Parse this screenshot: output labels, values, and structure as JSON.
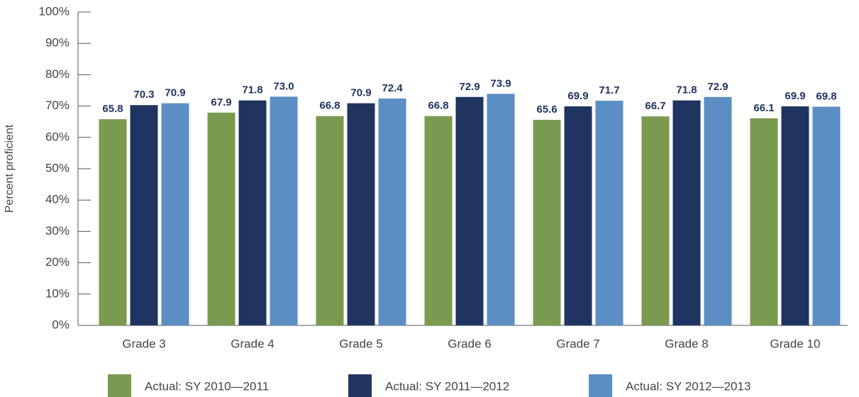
{
  "chart_data": {
    "type": "bar",
    "y_label": "Percent proficient",
    "categories": [
      "Grade 3",
      "Grade 4",
      "Grade 5",
      "Grade 6",
      "Grade 7",
      "Grade 8",
      "Grade 10"
    ],
    "series": [
      {
        "name": "Actual: SY 2010—2011",
        "color": "#7a9a4f",
        "values": [
          65.8,
          67.9,
          66.8,
          66.8,
          65.6,
          66.7,
          66.1
        ],
        "value_labels": [
          "65.8",
          "67.9",
          "66.8",
          "66.8",
          "65.6",
          "66.7",
          "66.1"
        ]
      },
      {
        "name": "Actual: SY 2011—2012",
        "color": "#1f3461",
        "values": [
          70.3,
          71.8,
          70.9,
          72.9,
          69.9,
          71.8,
          69.9
        ],
        "value_labels": [
          "70.3",
          "71.8",
          "70.9",
          "72.9",
          "69.9",
          "71.8",
          "69.9"
        ]
      },
      {
        "name": "Actual: SY 2012—2013",
        "color": "#5b8ec4",
        "values": [
          70.9,
          73.0,
          72.4,
          73.9,
          71.7,
          72.9,
          69.8
        ],
        "value_labels": [
          "70.9",
          "73.0",
          "72.4",
          "73.9",
          "71.7",
          "72.9",
          "69.8"
        ]
      }
    ],
    "ylim": [
      0,
      100
    ],
    "yticks": [
      {
        "value": 0,
        "label": "0%"
      },
      {
        "value": 10,
        "label": "10%"
      },
      {
        "value": 20,
        "label": "20%"
      },
      {
        "value": 30,
        "label": "30%"
      },
      {
        "value": 40,
        "label": "40%"
      },
      {
        "value": 50,
        "label": "50%"
      },
      {
        "value": 60,
        "label": "60%"
      },
      {
        "value": 70,
        "label": "70%"
      },
      {
        "value": 80,
        "label": "80%"
      },
      {
        "value": 90,
        "label": "90%"
      },
      {
        "value": 100,
        "label": "100%"
      }
    ],
    "legend": "bottom"
  }
}
